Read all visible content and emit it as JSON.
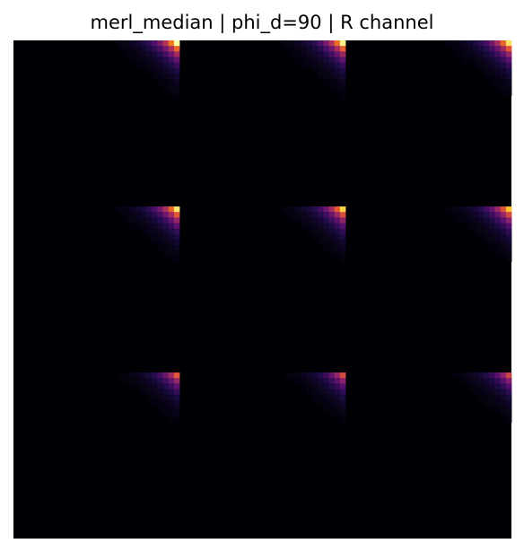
{
  "chart_data": {
    "type": "heatmap",
    "title": "merl_median | phi_d=90 | R channel",
    "colormap": "inferno",
    "grid": false,
    "axes_visible": false,
    "tile_layout": {
      "rows": 3,
      "cols": 3,
      "tile_size": 30
    },
    "value_range": [
      0,
      1
    ],
    "tile_peaks": [
      [
        1.0,
        0.97,
        0.93
      ],
      [
        0.94,
        0.9,
        0.86
      ],
      [
        0.62,
        0.58,
        0.55
      ]
    ],
    "colors": {
      "background": "#ffffff",
      "title": "#000000"
    }
  }
}
